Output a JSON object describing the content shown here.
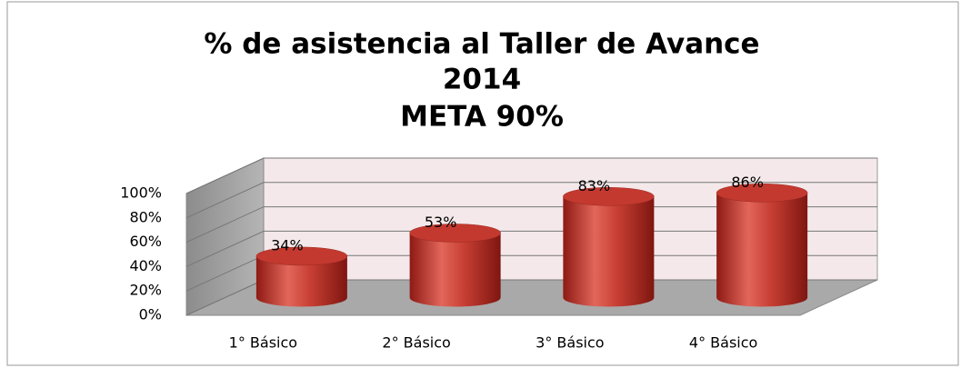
{
  "chart_data": {
    "type": "bar3d",
    "title": [
      "% de asistencia al Taller de Avance",
      "2014",
      "META 90%"
    ],
    "categories": [
      "1° Básico",
      "2° Básico",
      "3° Básico",
      "4° Básico"
    ],
    "values": [
      34,
      53,
      83,
      86
    ],
    "value_labels": [
      "34%",
      "53%",
      "83%",
      "86%"
    ],
    "color": "#c0392b",
    "ylim": [
      0,
      100
    ],
    "yticks": [
      {
        "value": 0,
        "label": "0%"
      },
      {
        "value": 20,
        "label": "20%"
      },
      {
        "value": 40,
        "label": "40%"
      },
      {
        "value": 60,
        "label": "60%"
      },
      {
        "value": 80,
        "label": "80%"
      },
      {
        "value": 100,
        "label": "100%"
      }
    ],
    "grid": true
  }
}
